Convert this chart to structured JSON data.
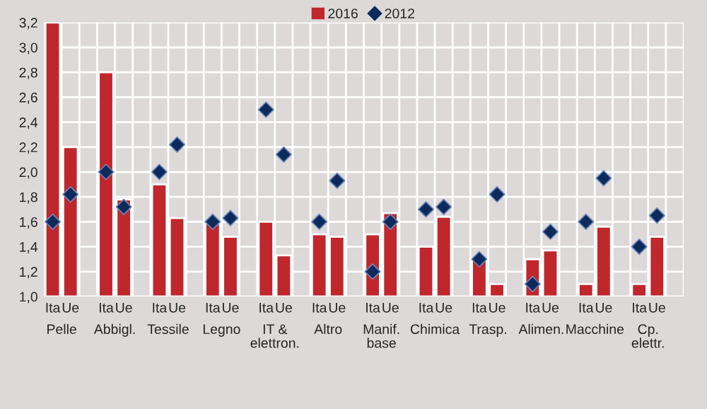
{
  "chart_data": {
    "type": "bar",
    "categories": [
      "Ita",
      "Ue",
      null,
      "Ita",
      "Ue",
      null,
      "Ita",
      "Ue",
      null,
      "Ita",
      "Ue",
      null,
      "Ita",
      "Ue",
      null,
      "Ita",
      "Ue",
      null,
      "Ita",
      "Ue",
      null,
      "Ita",
      "Ue",
      null,
      "Ita",
      "Ue",
      null,
      "Ita",
      "Ue",
      null,
      "Ita",
      "Ue",
      null,
      "Ita",
      "Ue",
      null
    ],
    "series": [
      {
        "name": "2016",
        "color": "#c0272d",
        "values": [
          3.2,
          2.2,
          null,
          2.8,
          1.78,
          null,
          1.9,
          1.63,
          null,
          1.6,
          1.48,
          null,
          1.6,
          1.33,
          null,
          1.5,
          1.48,
          null,
          1.5,
          1.67,
          null,
          1.4,
          1.64,
          null,
          1.3,
          1.1,
          null,
          1.3,
          1.37,
          null,
          1.1,
          1.56,
          null,
          1.1,
          1.48,
          null
        ]
      },
      {
        "name": "2012",
        "type": "scatter",
        "color": "#0d2a5c",
        "marker": "diamond",
        "values": [
          1.6,
          1.82,
          null,
          2.0,
          1.72,
          null,
          2.0,
          2.22,
          null,
          1.6,
          1.63,
          null,
          2.5,
          2.14,
          null,
          1.6,
          1.93,
          null,
          1.2,
          1.6,
          null,
          1.7,
          1.72,
          null,
          1.3,
          1.82,
          null,
          1.1,
          1.52,
          null,
          1.6,
          1.95,
          null,
          1.4,
          1.65,
          null
        ]
      }
    ],
    "annotations": [
      "Pelle",
      "Abbigl.",
      "Tessile",
      "Legno",
      "IT &\nelettron.",
      "Altro",
      "Manif.\nbase",
      "Chimica",
      "Trasp.",
      "Alimen.",
      "Macchine",
      "Cp.\nelettr."
    ],
    "ylim": [
      1.0,
      3.2
    ],
    "yticks": [
      {
        "value": 1.0,
        "label": "1,0"
      },
      {
        "value": 1.2,
        "label": "1,2"
      },
      {
        "value": 1.4,
        "label": "1,4"
      },
      {
        "value": 1.6,
        "label": "1,6"
      },
      {
        "value": 1.8,
        "label": "1,8"
      },
      {
        "value": 2.0,
        "label": "2,0"
      },
      {
        "value": 2.2,
        "label": "2,2"
      },
      {
        "value": 2.4,
        "label": "2,4"
      },
      {
        "value": 2.6,
        "label": "2,6"
      },
      {
        "value": 2.8,
        "label": "2,8"
      },
      {
        "value": 3.0,
        "label": "3,0"
      },
      {
        "value": 3.2,
        "label": "3,2"
      }
    ],
    "grid": true,
    "legend": "top"
  }
}
